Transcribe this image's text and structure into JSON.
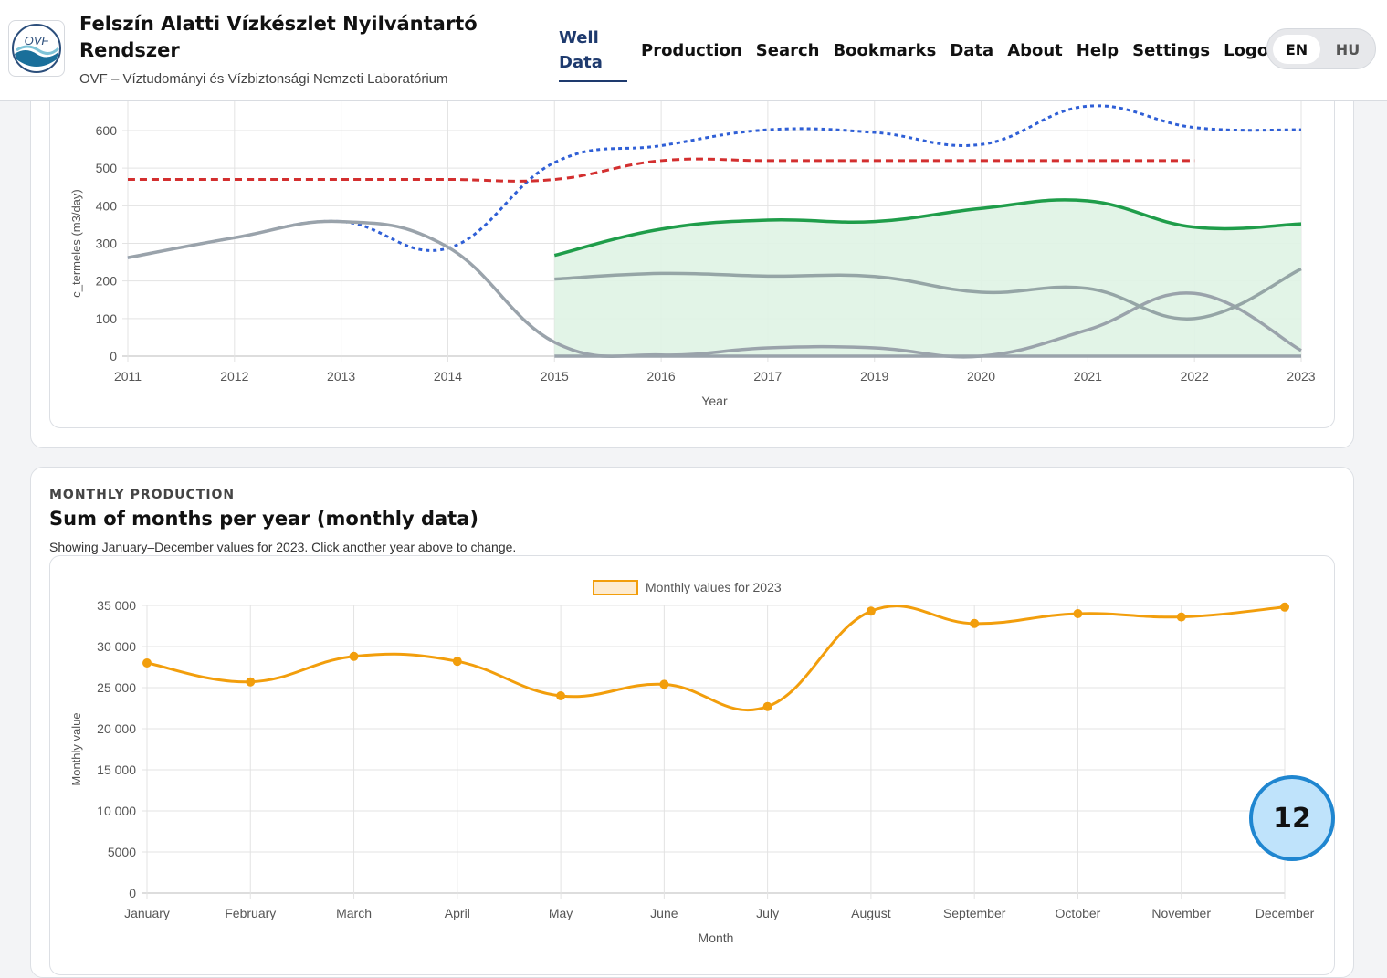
{
  "header": {
    "title": "Felszín Alatti Vízkészlet Nyilvántartó Rendszer",
    "subtitle": "OVF – Víztudományi és Vízbiztonsági Nemzeti Laboratórium",
    "logo_text": "OVF"
  },
  "nav": {
    "active": "Well Data",
    "items": [
      "Production",
      "Search",
      "Bookmarks",
      "Data",
      "About",
      "Help",
      "Settings",
      "Logout"
    ],
    "languages": [
      "EN",
      "HU"
    ],
    "selected_language": "EN"
  },
  "monthly": {
    "kicker": "MONTHLY PRODUCTION",
    "title": "Sum of months per year (monthly data)",
    "description": "Showing January–December values for 2023. Click another year above to change."
  },
  "badge": "12",
  "chart_data": [
    {
      "type": "line",
      "ylabel": "c_termeles (m3/day)",
      "xlabel": "Year",
      "categories": [
        "2011",
        "2012",
        "2013",
        "2014",
        "2015",
        "2016",
        "2017",
        "2019",
        "2020",
        "2021",
        "2022",
        "2023"
      ],
      "ylim": [
        0,
        650
      ],
      "yticks": [
        0,
        100,
        200,
        300,
        400,
        500,
        600
      ],
      "grid": true,
      "series": [
        {
          "color": "#2f5fd6",
          "style": "dotted",
          "values": [
            262,
            315,
            358,
            287,
            515,
            560,
            602,
            595,
            563,
            665,
            608,
            602
          ]
        },
        {
          "color": "#d32f2f",
          "style": "dashed",
          "values": [
            470,
            470,
            470,
            470,
            470,
            520,
            520,
            520,
            520,
            520,
            520,
            null
          ]
        },
        {
          "color": "#1f9d4a",
          "style": "solid",
          "fill": "#dff3e4",
          "values": [
            null,
            null,
            null,
            null,
            268,
            338,
            362,
            358,
            393,
            413,
            343,
            352
          ]
        },
        {
          "color": "#9aa3ab",
          "style": "solid",
          "values": [
            262,
            315,
            358,
            290,
            37,
            3,
            22,
            22,
            0,
            70,
            167,
            15
          ]
        },
        {
          "color": "#95a5a6",
          "style": "solid",
          "values": [
            null,
            null,
            null,
            null,
            205,
            220,
            213,
            212,
            170,
            180,
            100,
            232
          ]
        },
        {
          "color": "#9aa3ab",
          "style": "solid",
          "values": [
            null,
            null,
            null,
            null,
            0,
            0,
            0,
            0,
            0,
            0,
            0,
            0
          ]
        }
      ]
    },
    {
      "type": "line",
      "ylabel": "Monthly value",
      "xlabel": "Month",
      "legend": "top",
      "categories": [
        "January",
        "February",
        "March",
        "April",
        "May",
        "June",
        "July",
        "August",
        "September",
        "October",
        "November",
        "December"
      ],
      "ylim": [
        0,
        35000
      ],
      "yticks": [
        "0",
        "5000",
        "10 000",
        "15 000",
        "20 000",
        "25 000",
        "30 000",
        "35 000"
      ],
      "grid": true,
      "series": [
        {
          "name": "Monthly values for 2023",
          "color": "#f29e0c",
          "values": [
            28000,
            25700,
            28800,
            28200,
            24000,
            25400,
            22700,
            34300,
            32800,
            34000,
            33600,
            34800
          ]
        }
      ]
    }
  ]
}
